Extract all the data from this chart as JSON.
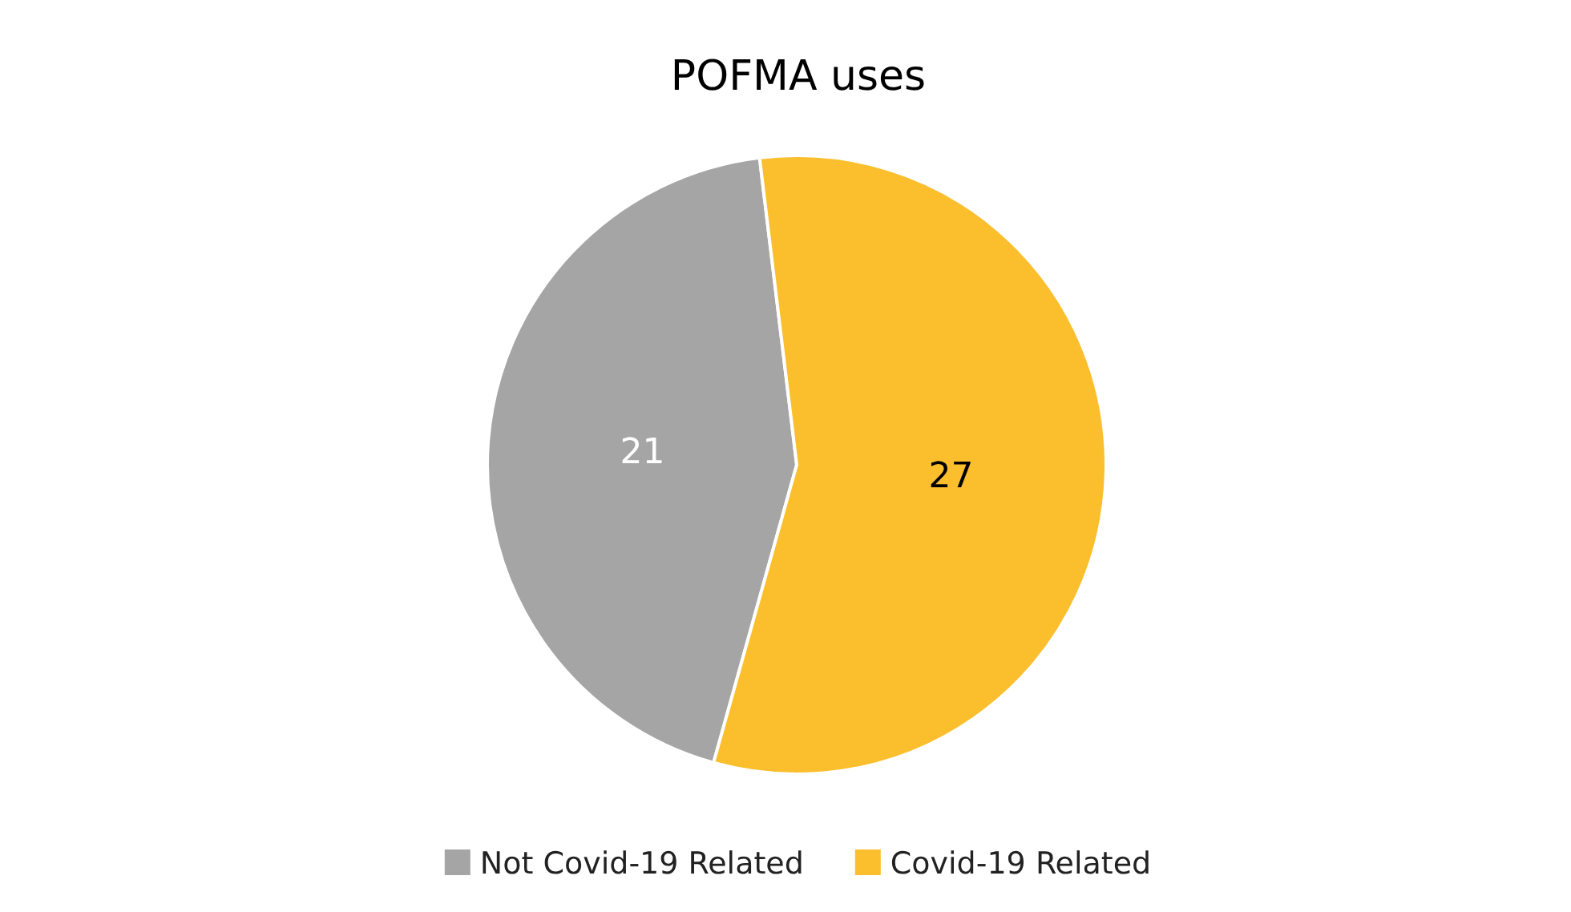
{
  "chart_data": {
    "type": "pie",
    "title": "POFMA uses",
    "categories": [
      "Not Covid-19 Related",
      "Covid-19 Related"
    ],
    "values": [
      21,
      27
    ],
    "colors": [
      "#a5a5a5",
      "#fbbf2d"
    ],
    "data_labels": true,
    "legend": "bottom"
  }
}
